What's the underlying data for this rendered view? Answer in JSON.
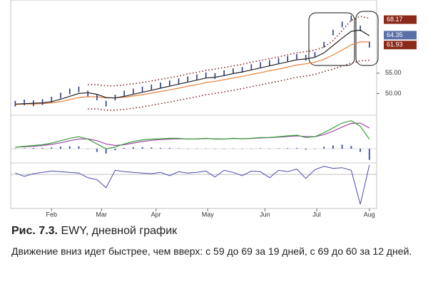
{
  "chart_data": {
    "type": "stock",
    "x": [
      0,
      1,
      2,
      3,
      4,
      5,
      6,
      7,
      8,
      9,
      10,
      11,
      12,
      13,
      14,
      15,
      16,
      17,
      18,
      19,
      20,
      21,
      22,
      23,
      24,
      25,
      26,
      27,
      28,
      29,
      30,
      31,
      32,
      33,
      34,
      35,
      36,
      37,
      38,
      39
    ],
    "xlim": [
      -0.5,
      39.8
    ],
    "xticks": [
      {
        "value": 4,
        "label": "Feb"
      },
      {
        "value": 9.5,
        "label": "Mar"
      },
      {
        "value": 15.5,
        "label": "Apr"
      },
      {
        "value": 21.2,
        "label": "May"
      },
      {
        "value": 27.5,
        "label": "Jun"
      },
      {
        "value": 33.2,
        "label": "Jul"
      },
      {
        "value": 39,
        "label": "Aug"
      }
    ],
    "ylim": [
      45,
      73
    ],
    "yticks": [
      {
        "value": 50,
        "label": "50.00"
      },
      {
        "value": 55,
        "label": "55.00"
      }
    ],
    "price": {
      "color": "#2a3a7a",
      "values": [
        47.5,
        47.8,
        47.6,
        47.9,
        48.5,
        49.5,
        50.5,
        51,
        50,
        49,
        47.5,
        49,
        50,
        50.5,
        51,
        51.5,
        52,
        52.5,
        53,
        53.5,
        54,
        54.5,
        54.3,
        55,
        55.5,
        55.8,
        56.5,
        57,
        57.5,
        58,
        58.5,
        59,
        58.8,
        59.5,
        62,
        65,
        67,
        68.5,
        66,
        62
      ]
    },
    "ema_fast": {
      "color": "#222222",
      "values": [
        47.4,
        47.5,
        47.6,
        47.7,
        48,
        48.6,
        49.3,
        50,
        50.2,
        49.8,
        49,
        48.9,
        49.3,
        49.8,
        50.3,
        50.8,
        51.3,
        51.8,
        52.3,
        52.8,
        53.3,
        53.8,
        54,
        54.4,
        54.9,
        55.3,
        55.8,
        56.3,
        56.8,
        57.3,
        57.8,
        58.3,
        58.5,
        58.9,
        60,
        61.8,
        63.6,
        65.3,
        65.6,
        64.2
      ]
    },
    "ema_slow": {
      "color": "#e8823a",
      "values": [
        47.3,
        47.4,
        47.4,
        47.5,
        47.7,
        48,
        48.5,
        49,
        49.2,
        49.2,
        48.9,
        48.9,
        49.1,
        49.4,
        49.7,
        50.1,
        50.5,
        50.9,
        51.3,
        51.8,
        52.2,
        52.7,
        53,
        53.4,
        53.8,
        54.2,
        54.7,
        55.1,
        55.6,
        56,
        56.5,
        57,
        57.3,
        57.7,
        58.4,
        59.5,
        60.7,
        62,
        62.7,
        62.7
      ]
    },
    "upper": {
      "color": "#7a1a1a",
      "values": [
        null,
        null,
        null,
        null,
        null,
        null,
        null,
        null,
        52.2,
        52.2,
        51.9,
        51.9,
        52.1,
        52.4,
        52.7,
        53.1,
        53.5,
        53.9,
        54.3,
        54.8,
        55.2,
        55.7,
        56,
        56.4,
        56.8,
        57.2,
        57.7,
        58.1,
        58.6,
        59,
        59.5,
        60,
        60.3,
        60.7,
        61.4,
        63,
        65.5,
        68,
        69,
        68.5
      ]
    },
    "lower": {
      "color": "#7a1a1a",
      "values": [
        null,
        null,
        null,
        null,
        null,
        null,
        null,
        null,
        46.2,
        46.2,
        45.9,
        45.9,
        46.1,
        46.4,
        46.7,
        47.1,
        47.5,
        47.9,
        48.3,
        48.8,
        49.2,
        49.7,
        50,
        50.4,
        50.8,
        51.2,
        51.7,
        52.1,
        52.6,
        53,
        53.5,
        54,
        54.3,
        54.7,
        55.4,
        56,
        56.7,
        57.5,
        58,
        58.2
      ]
    },
    "price_labels": [
      {
        "value": 68.17,
        "label": "68.17",
        "color": "#8b2a1a"
      },
      {
        "value": 64.35,
        "label": "64.35",
        "color": "#5a6fa8"
      },
      {
        "value": 61.93,
        "label": "61.93",
        "color": "#8b2a1a"
      }
    ],
    "macd": {
      "ylim": [
        -0.8,
        2.0
      ],
      "line": {
        "color": "#3aa03a",
        "values": [
          0.1,
          0.15,
          0.2,
          0.25,
          0.35,
          0.5,
          0.65,
          0.75,
          0.6,
          0.3,
          0,
          0.1,
          0.3,
          0.45,
          0.55,
          0.6,
          0.62,
          0.65,
          0.65,
          0.6,
          0.62,
          0.65,
          0.6,
          0.6,
          0.65,
          0.62,
          0.65,
          0.7,
          0.7,
          0.75,
          0.8,
          0.85,
          0.7,
          0.75,
          1.0,
          1.3,
          1.6,
          1.75,
          1.4,
          0.6
        ]
      },
      "signal": {
        "color": "#a04aa8",
        "values": [
          0.1,
          0.12,
          0.15,
          0.2,
          0.27,
          0.37,
          0.5,
          0.6,
          0.62,
          0.5,
          0.3,
          0.2,
          0.25,
          0.35,
          0.45,
          0.52,
          0.57,
          0.6,
          0.62,
          0.61,
          0.61,
          0.63,
          0.62,
          0.61,
          0.63,
          0.63,
          0.64,
          0.67,
          0.69,
          0.72,
          0.76,
          0.8,
          0.76,
          0.75,
          0.88,
          1.1,
          1.35,
          1.58,
          1.6,
          1.3
        ]
      },
      "histogram": {
        "color": "#4a5aa8",
        "values": [
          0,
          0.03,
          0.05,
          0.05,
          0.08,
          0.13,
          0.15,
          0.15,
          -0.02,
          -0.2,
          -0.3,
          -0.1,
          0.05,
          0.1,
          0.1,
          0.08,
          0.05,
          0.05,
          0.03,
          -0.01,
          0.01,
          0.02,
          -0.02,
          -0.01,
          0.02,
          -0.01,
          0.01,
          0.03,
          0.01,
          0.03,
          0.04,
          0.05,
          -0.06,
          0,
          0.12,
          0.2,
          0.25,
          0.17,
          -0.2,
          -0.7
        ]
      }
    },
    "force": {
      "ylim": [
        -5,
        1.5
      ],
      "color": "#4a4aa8",
      "values": [
        0.2,
        -0.3,
        0.1,
        0.3,
        0.5,
        0.4,
        0.3,
        0.2,
        -0.5,
        -0.8,
        -2,
        0.6,
        0.4,
        0.3,
        0.2,
        0.1,
        0.3,
        -0.2,
        0.4,
        0.2,
        0.3,
        0.5,
        -0.4,
        0.6,
        0.3,
        -0.2,
        0.5,
        0.4,
        -0.5,
        0.6,
        0.4,
        0.8,
        -0.6,
        0.7,
        1.2,
        0.9,
        1,
        0.6,
        -4.5,
        1.4
      ]
    }
  },
  "caption": {
    "label": "Рис. 7.3.",
    "title": "EWY, дневной график",
    "description": "Движение вниз идет быстрее, чем вверх: с 59 до 69 за 19 дней, с 69 до 60 за 12 дней."
  }
}
